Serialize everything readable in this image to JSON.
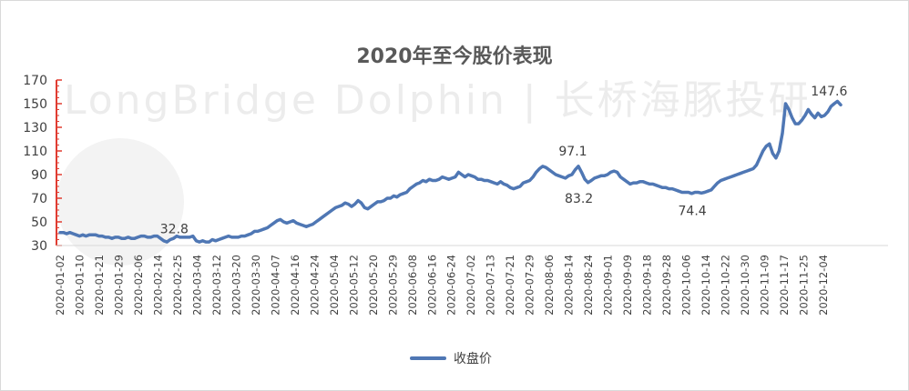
{
  "chart_data": {
    "type": "line",
    "title": "2020年至今股价表现",
    "watermark": "LongBridge Dolphin | 长桥海豚投研",
    "xlabel": "",
    "ylabel": "",
    "ylim": [
      30,
      170
    ],
    "yticks": [
      30,
      50,
      70,
      90,
      110,
      130,
      150,
      170
    ],
    "grid": false,
    "legend_position": "bottom",
    "line_color": "#4f77b4",
    "x_tick_labels": [
      "2020-01-02",
      "2020-01-10",
      "2020-01-21",
      "2020-01-29",
      "2020-02-06",
      "2020-02-14",
      "2020-02-25",
      "2020-03-04",
      "2020-03-12",
      "2020-03-20",
      "2020-03-30",
      "2020-04-07",
      "2020-04-16",
      "2020-04-24",
      "2020-05-04",
      "2020-05-12",
      "2020-05-20",
      "2020-05-29",
      "2020-06-08",
      "2020-06-16",
      "2020-06-24",
      "2020-07-02",
      "2020-07-13",
      "2020-07-21",
      "2020-07-29",
      "2020-08-06",
      "2020-08-14",
      "2020-08-24",
      "2020-09-01",
      "2020-09-09",
      "2020-09-18",
      "2020-09-28",
      "2020-10-06",
      "2020-10-14",
      "2020-10-22",
      "2020-10-30",
      "2020-11-09",
      "2020-11-17",
      "2020-11-25",
      "2020-12-04"
    ],
    "series": [
      {
        "name": "收盘价",
        "values": [
          41,
          41,
          40,
          41,
          40,
          39,
          38,
          39,
          38,
          39,
          39,
          39,
          38,
          38,
          37,
          37,
          36,
          37,
          37,
          36,
          36,
          37,
          36,
          36,
          37,
          38,
          38,
          37,
          37,
          38,
          38,
          36,
          34,
          33,
          35,
          36,
          38,
          37,
          37,
          37,
          37,
          38,
          34,
          33,
          34,
          33,
          33,
          35,
          34,
          35,
          36,
          37,
          38,
          37,
          37,
          37,
          38,
          38,
          39,
          40,
          42,
          42,
          43,
          44,
          45,
          47,
          49,
          51,
          52,
          50,
          49,
          50,
          51,
          49,
          48,
          47,
          46,
          47,
          48,
          50,
          52,
          54,
          56,
          58,
          60,
          62,
          63,
          64,
          66,
          65,
          63,
          65,
          68,
          66,
          62,
          61,
          63,
          65,
          67,
          67,
          68,
          70,
          70,
          72,
          71,
          73,
          74,
          75,
          78,
          80,
          82,
          83,
          85,
          84,
          86,
          85,
          85,
          86,
          88,
          87,
          86,
          87,
          88,
          92,
          90,
          88,
          90,
          89,
          88,
          86,
          86,
          85,
          85,
          84,
          83,
          82,
          84,
          82,
          81,
          79,
          78,
          79,
          80,
          83,
          84,
          85,
          88,
          92,
          95,
          97,
          96,
          94,
          92,
          90,
          89,
          88,
          87,
          89,
          90,
          94,
          97.1,
          92,
          86,
          83.2,
          85,
          87,
          88,
          89,
          89,
          90,
          92,
          93,
          92,
          88,
          86,
          84,
          82,
          83,
          83,
          84,
          84,
          83,
          82,
          82,
          81,
          80,
          79,
          79,
          78,
          78,
          77,
          76,
          75,
          75,
          75,
          74,
          75,
          75,
          74.4,
          75,
          76,
          77,
          80,
          83,
          85,
          86,
          87,
          88,
          89,
          90,
          91,
          92,
          93,
          94,
          95,
          98,
          104,
          110,
          114,
          116,
          108,
          104,
          110,
          125,
          150,
          145,
          138,
          133,
          133,
          136,
          140,
          145,
          141,
          138,
          142,
          139,
          140,
          143,
          147.6,
          150,
          152,
          149
        ]
      }
    ],
    "annotations": [
      {
        "label": "32.8",
        "value": 32.8
      },
      {
        "label": "97.1",
        "value": 97.1
      },
      {
        "label": "83.2",
        "value": 83.2
      },
      {
        "label": "74.4",
        "value": 74.4
      },
      {
        "label": "147.6",
        "value": 147.6
      }
    ]
  }
}
